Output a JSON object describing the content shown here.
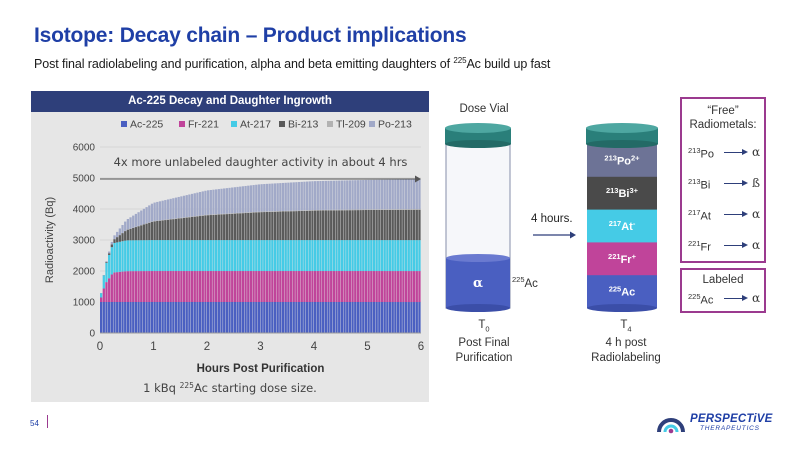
{
  "slide": {
    "title": "Isotope: Decay chain – Product implications",
    "subtitle_pre": "Post final radiolabeling and purification, alpha and beta emitting daughters of ",
    "subtitle_sup": "225",
    "subtitle_post": "Ac build up fast",
    "page_number": "54"
  },
  "chart_data": {
    "type": "area",
    "title": "Ac-225 Decay and Daughter Ingrowth",
    "xlabel": "Hours Post Purification",
    "ylabel": "Radioactivity (Bq)",
    "xlim": [
      0,
      6
    ],
    "ylim": [
      0,
      6000
    ],
    "x_ticks": [
      "0",
      "1",
      "2",
      "3",
      "4",
      "5",
      "6"
    ],
    "y_ticks": [
      "0",
      "1000",
      "2000",
      "3000",
      "4000",
      "5000",
      "6000"
    ],
    "grid": true,
    "legend_position": "top",
    "stacked": true,
    "series": [
      {
        "name": "Ac-225",
        "color": "#4a5fc1",
        "x": [
          0,
          0.1,
          0.25,
          0.5,
          1,
          2,
          3,
          4,
          5,
          6
        ],
        "values": [
          1000,
          1000,
          1000,
          1000,
          1000,
          1000,
          1000,
          1000,
          1000,
          999
        ]
      },
      {
        "name": "Fr-221",
        "color": "#c0449a",
        "x": [
          0,
          0.1,
          0.25,
          0.5,
          1,
          2,
          3,
          4,
          5,
          6
        ],
        "values": [
          0,
          580,
          950,
          995,
          999,
          999,
          999,
          999,
          999,
          999
        ]
      },
      {
        "name": "At-217",
        "color": "#45cbe6",
        "x": [
          0,
          0.1,
          0.25,
          0.5,
          1,
          2,
          3,
          4,
          5,
          6
        ],
        "values": [
          0,
          560,
          945,
          995,
          999,
          999,
          999,
          999,
          999,
          999
        ]
      },
      {
        "name": "Bi-213",
        "color": "#5a5a5a",
        "x": [
          0,
          0.1,
          0.25,
          0.5,
          1,
          2,
          3,
          4,
          5,
          6
        ],
        "values": [
          0,
          10,
          100,
          330,
          600,
          800,
          900,
          950,
          970,
          980
        ]
      },
      {
        "name": "Tl-209",
        "color": "#b2b2b2",
        "x": [
          0,
          0.1,
          0.25,
          0.5,
          1,
          2,
          3,
          4,
          5,
          6
        ],
        "values": [
          0,
          0,
          2,
          7,
          13,
          17,
          19,
          20,
          21,
          21
        ]
      },
      {
        "name": "Po-213",
        "color": "#a1a9c8",
        "x": [
          0,
          0.1,
          0.25,
          0.5,
          1,
          2,
          3,
          4,
          5,
          6
        ],
        "values": [
          0,
          10,
          98,
          323,
          587,
          783,
          881,
          930,
          949,
          959
        ]
      }
    ],
    "annotation": "4x more unlabeled daughter activity in about 4 hrs",
    "footnote_pre": "1 kBq ",
    "footnote_sup": "225",
    "footnote_post": "Ac starting dose size."
  },
  "colors": {
    "title_blue": "#1f3fa6",
    "header_navy": "#2e3f7a",
    "accent_purple": "#9b3a8f"
  },
  "vials": {
    "arrow_label": "4 hours.",
    "t0": {
      "heading": "Dose Vial",
      "content_symbol": "α",
      "side_label_sup": "225",
      "side_label": "Ac",
      "caption_t": "T",
      "caption_sub": "0",
      "caption_line2": "Post Final",
      "caption_line3": "Purification"
    },
    "t4": {
      "layers": [
        {
          "sup": "213",
          "symbol": "Po",
          "charge": "2+",
          "color": "#6d7396",
          "text_color": "#ffffff"
        },
        {
          "sup": "213",
          "symbol": "Bi",
          "charge": "3+",
          "color": "#4a4a4a",
          "text_color": "#ffffff"
        },
        {
          "sup": "217",
          "symbol": "At",
          "charge": "-",
          "color": "#45cbe6",
          "text_color": "#ffffff"
        },
        {
          "sup": "221",
          "symbol": "Fr",
          "charge": "+",
          "color": "#c0449a",
          "text_color": "#ffffff"
        },
        {
          "sup": "225",
          "symbol": "Ac",
          "charge": "",
          "color": "#4a5fc1",
          "text_color": "#ffffff"
        }
      ],
      "caption_t": "T",
      "caption_sub": "4",
      "caption_line2": "4 h post",
      "caption_line3": "Radiolabeling"
    }
  },
  "radiometals": {
    "free_title_line1": "“Free”",
    "free_title_line2": "Radiometals:",
    "free": [
      {
        "sup": "213",
        "symbol": "Po",
        "emission": "α"
      },
      {
        "sup": "213",
        "symbol": "Bi",
        "emission": "ß"
      },
      {
        "sup": "217",
        "symbol": "At",
        "emission": "α"
      },
      {
        "sup": "221",
        "symbol": "Fr",
        "emission": "α"
      }
    ],
    "labeled_title": "Labeled",
    "labeled": {
      "sup": "225",
      "symbol": "Ac",
      "emission": "α"
    }
  },
  "logo": {
    "name": "PERSPECTiVE",
    "sub": "THERAPEUTICS",
    "icon": "perspective-logo-icon"
  }
}
